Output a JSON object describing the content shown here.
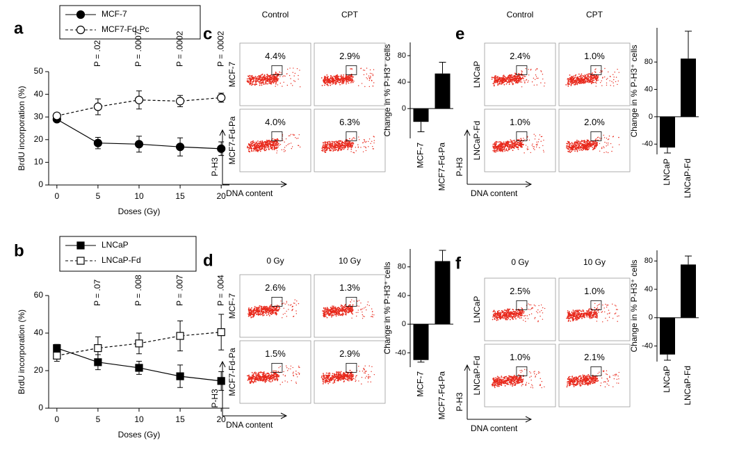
{
  "chart_data": [
    {
      "type": "line",
      "panel": "a",
      "xlabel": "Doses (Gy)",
      "ylabel": "BrdU incorporation (%)",
      "x": [
        0,
        5,
        10,
        15,
        20
      ],
      "xlim": [
        -1,
        21
      ],
      "xticks": [
        0,
        5,
        10,
        15,
        20
      ],
      "ylim": [
        0,
        50
      ],
      "yticks": [
        0,
        10,
        20,
        30,
        40,
        50
      ],
      "legend": "upper left",
      "series": [
        {
          "name": "MCF-7",
          "color": "#000000",
          "marker": "circle",
          "fill": "filled",
          "linestyle": "solid",
          "values": [
            29,
            18.5,
            18,
            16.8,
            16
          ],
          "errors": [
            1,
            2.5,
            3.5,
            4,
            3
          ]
        },
        {
          "name": "MCF7-Fd-Pc",
          "color": "#000000",
          "marker": "circle",
          "fill": "open",
          "linestyle": "dashed",
          "values": [
            30.5,
            34.5,
            37.5,
            37,
            38.5
          ],
          "errors": [
            1,
            3.5,
            4,
            2.5,
            2
          ]
        }
      ],
      "annotations": [
        {
          "x": 5,
          "text": "P = .02"
        },
        {
          "x": 10,
          "text": "P = .0007"
        },
        {
          "x": 15,
          "text": "P = .0002"
        },
        {
          "x": 20,
          "text": "P = .0002"
        }
      ]
    },
    {
      "type": "flow",
      "panel": "c",
      "columns": [
        "Control",
        "CPT"
      ],
      "rows": [
        "MCF-7",
        "MCF7-Fd-Pa"
      ],
      "gates": [
        [
          "4.4%",
          "2.9%"
        ],
        [
          "4.0%",
          "6.3%"
        ]
      ],
      "ylabel": "P-H3",
      "xlabel": "DNA content"
    },
    {
      "type": "bar",
      "ylabel": "Change in % P-H3⁺ cells",
      "categories": [
        "MCF-7",
        "MCF7-Fd-Pa"
      ],
      "values": [
        -20,
        53
      ],
      "errors": [
        15,
        17
      ],
      "color": "#000000",
      "ylim": [
        -45,
        100
      ],
      "yticks": [
        0,
        40,
        80
      ]
    },
    {
      "type": "flow",
      "panel": "e",
      "columns": [
        "Control",
        "CPT"
      ],
      "rows": [
        "LNCaP",
        "LNCaP-Fd"
      ],
      "gates": [
        [
          "2.4%",
          "1.0%"
        ],
        [
          "1.0%",
          "2.0%"
        ]
      ],
      "ylabel": "P-H3",
      "xlabel": "DNA content"
    },
    {
      "type": "bar",
      "ylabel": "Change in % P-H3⁺ cells",
      "categories": [
        "LNCaP",
        "LNCaP-Fd"
      ],
      "values": [
        -45,
        85
      ],
      "errors": [
        8,
        40
      ],
      "color": "#000000",
      "ylim": [
        -55,
        130
      ],
      "yticks": [
        -40,
        0,
        40,
        80
      ]
    },
    {
      "type": "line",
      "panel": "b",
      "xlabel": "Doses (Gy)",
      "ylabel": "BrdU incorporation (%)",
      "x": [
        0,
        5,
        10,
        15,
        20
      ],
      "xlim": [
        -1,
        21
      ],
      "xticks": [
        0,
        5,
        10,
        15,
        20
      ],
      "ylim": [
        0,
        60
      ],
      "yticks": [
        0,
        20,
        40,
        60
      ],
      "legend": "upper left",
      "series": [
        {
          "name": "LNCaP",
          "color": "#000000",
          "marker": "square",
          "fill": "filled",
          "linestyle": "solid",
          "values": [
            32,
            24.5,
            21.5,
            17,
            14.5
          ],
          "errors": [
            2,
            4,
            3.5,
            6,
            5
          ]
        },
        {
          "name": "LNCaP-Fd",
          "color": "#000000",
          "marker": "square",
          "fill": "open",
          "linestyle": "dashed",
          "values": [
            28,
            32,
            34.5,
            38.5,
            40.5
          ],
          "errors": [
            3,
            6,
            5.5,
            8,
            9.5
          ]
        }
      ],
      "annotations": [
        {
          "x": 5,
          "text": "P = .07"
        },
        {
          "x": 10,
          "text": "P = .008"
        },
        {
          "x": 15,
          "text": "P = .007"
        },
        {
          "x": 20,
          "text": "P = .004"
        }
      ]
    },
    {
      "type": "flow",
      "panel": "d",
      "columns": [
        "0 Gy",
        "10 Gy"
      ],
      "rows": [
        "MCF-7",
        "MCF7-Fd-Pa"
      ],
      "gates": [
        [
          "2.6%",
          "1.3%"
        ],
        [
          "1.5%",
          "2.9%"
        ]
      ],
      "ylabel": "P-H3",
      "xlabel": "DNA content"
    },
    {
      "type": "bar",
      "ylabel": "Change in % P-H3⁺ cells",
      "categories": [
        "MCF-7",
        "MCF7-Fd-Pa"
      ],
      "values": [
        -50,
        88
      ],
      "errors": [
        3,
        15
      ],
      "color": "#000000",
      "ylim": [
        -60,
        105
      ],
      "yticks": [
        -40,
        0,
        40,
        80
      ]
    },
    {
      "type": "flow",
      "panel": "f",
      "columns": [
        "0 Gy",
        "10 Gy"
      ],
      "rows": [
        "LNCaP",
        "LNCaP-Fd"
      ],
      "gates": [
        [
          "2.5%",
          "1.0%"
        ],
        [
          "1.0%",
          "2.1%"
        ]
      ],
      "ylabel": "P-H3",
      "xlabel": "DNA content"
    },
    {
      "type": "bar",
      "ylabel": "Change in % P-H3⁺ cells",
      "categories": [
        "LNCaP",
        "LNCaP-Fd"
      ],
      "values": [
        -52,
        75
      ],
      "errors": [
        8,
        12
      ],
      "color": "#000000",
      "ylim": [
        -62,
        95
      ],
      "yticks": [
        -40,
        0,
        40,
        80
      ]
    }
  ]
}
